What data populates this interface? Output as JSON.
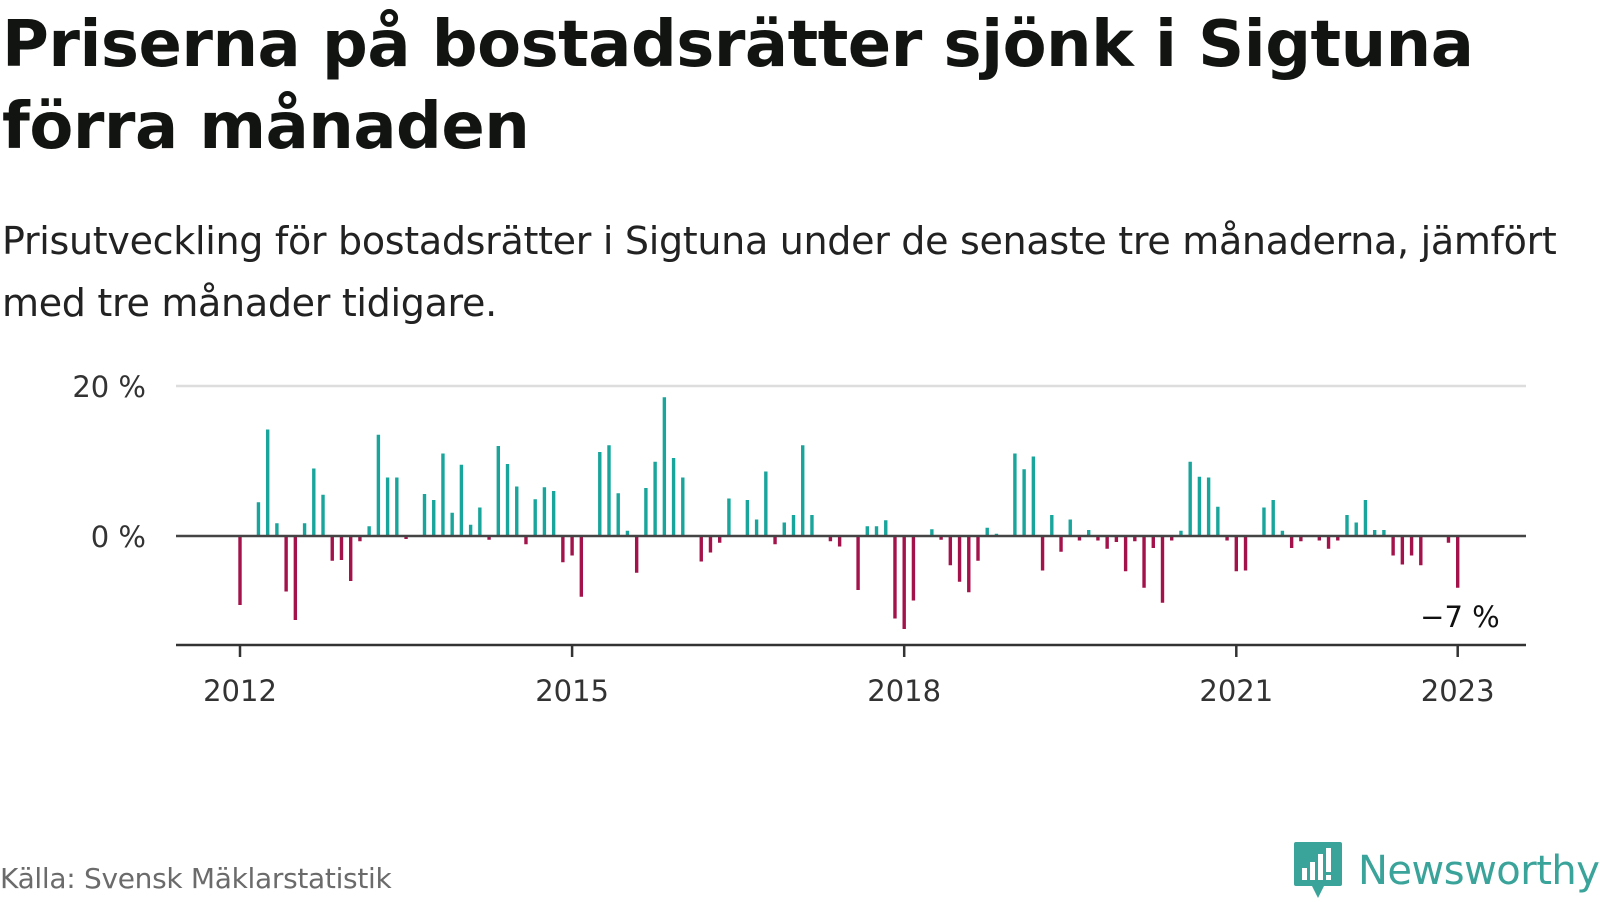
{
  "title": "Priserna på bostadsrätter sjönk i Sigtuna förra månaden",
  "subtitle": "Prisutveckling för bostadsrätter i Sigtuna under de senaste tre månaderna, jämfört med tre månader tidigare.",
  "source": "Källa: Svensk Mäklarstatistik",
  "brand": "Newsworthy",
  "colors": {
    "positive": "#18a59b",
    "negative": "#a3124a",
    "brand": "#3aa39a"
  },
  "chart_data": {
    "type": "bar",
    "unit": "%",
    "start": "2012-01",
    "end": "2023-01",
    "y_ticks": [
      0,
      20
    ],
    "y_tick_labels": [
      "0 %",
      "20 %"
    ],
    "ylim": [
      -14,
      20
    ],
    "x_tick_labels": [
      "2012",
      "2015",
      "2018",
      "2021",
      "2023"
    ],
    "end_label": "−7 %",
    "grid": true,
    "x": [
      "2012-01",
      "2012-02",
      "2012-03",
      "2012-04",
      "2012-05",
      "2012-06",
      "2012-07",
      "2012-08",
      "2012-09",
      "2012-10",
      "2012-11",
      "2012-12",
      "2013-01",
      "2013-02",
      "2013-03",
      "2013-04",
      "2013-05",
      "2013-06",
      "2013-07",
      "2013-08",
      "2013-09",
      "2013-10",
      "2013-11",
      "2013-12",
      "2014-01",
      "2014-02",
      "2014-03",
      "2014-04",
      "2014-05",
      "2014-06",
      "2014-07",
      "2014-08",
      "2014-09",
      "2014-10",
      "2014-11",
      "2014-12",
      "2015-01",
      "2015-02",
      "2015-03",
      "2015-04",
      "2015-05",
      "2015-06",
      "2015-07",
      "2015-08",
      "2015-09",
      "2015-10",
      "2015-11",
      "2015-12",
      "2016-01",
      "2016-02",
      "2016-03",
      "2016-04",
      "2016-05",
      "2016-06",
      "2016-07",
      "2016-08",
      "2016-09",
      "2016-10",
      "2016-11",
      "2016-12",
      "2017-01",
      "2017-02",
      "2017-03",
      "2017-04",
      "2017-05",
      "2017-06",
      "2017-07",
      "2017-08",
      "2017-09",
      "2017-10",
      "2017-11",
      "2017-12",
      "2018-01",
      "2018-02",
      "2018-03",
      "2018-04",
      "2018-05",
      "2018-06",
      "2018-07",
      "2018-08",
      "2018-09",
      "2018-10",
      "2018-11",
      "2018-12",
      "2019-01",
      "2019-02",
      "2019-03",
      "2019-04",
      "2019-05",
      "2019-06",
      "2019-07",
      "2019-08",
      "2019-09",
      "2019-10",
      "2019-11",
      "2019-12",
      "2020-01",
      "2020-02",
      "2020-03",
      "2020-04",
      "2020-05",
      "2020-06",
      "2020-07",
      "2020-08",
      "2020-09",
      "2020-10",
      "2020-11",
      "2020-12",
      "2021-01",
      "2021-02",
      "2021-03",
      "2021-04",
      "2021-05",
      "2021-06",
      "2021-07",
      "2021-08",
      "2021-09",
      "2021-10",
      "2021-11",
      "2021-12",
      "2022-01",
      "2022-02",
      "2022-03",
      "2022-04",
      "2022-05",
      "2022-06",
      "2022-07",
      "2022-08",
      "2022-09",
      "2022-10",
      "2022-11",
      "2022-12",
      "2023-01"
    ],
    "values": [
      -9.2,
      0,
      4.5,
      14.2,
      1.7,
      -7.4,
      -11.2,
      1.7,
      9,
      5.5,
      -3.3,
      -3.2,
      -6,
      -0.7,
      1.3,
      13.5,
      7.8,
      7.8,
      -0.4,
      0,
      5.6,
      4.8,
      11,
      3.1,
      9.5,
      1.5,
      3.8,
      -0.5,
      12,
      9.6,
      6.6,
      -1.1,
      4.9,
      6.5,
      6,
      -3.5,
      -2.6,
      -8.1,
      0,
      11.2,
      12.1,
      5.7,
      0.7,
      -4.9,
      6.4,
      9.9,
      18.5,
      10.4,
      7.8,
      0,
      -3.4,
      -2.2,
      -0.9,
      5,
      0,
      4.8,
      2.2,
      8.6,
      -1.1,
      1.8,
      2.8,
      12.1,
      2.8,
      0,
      -0.7,
      -1.4,
      0,
      -7.2,
      1.3,
      1.3,
      2.1,
      -11,
      -12.4,
      -8.6,
      0,
      0.9,
      -0.5,
      -3.9,
      -6.1,
      -7.5,
      -3.3,
      1.1,
      0.3,
      0,
      11,
      8.9,
      10.6,
      -4.6,
      2.8,
      -2.1,
      2.2,
      -0.6,
      0.8,
      -0.6,
      -1.7,
      -0.8,
      -4.7,
      -0.7,
      -6.9,
      -1.6,
      -8.9,
      -0.6,
      0.7,
      9.9,
      7.9,
      7.8,
      3.9,
      -0.6,
      -4.7,
      -4.6,
      0,
      3.8,
      4.8,
      0.7,
      -1.6,
      -0.7,
      0,
      -0.6,
      -1.7,
      -0.6,
      2.8,
      1.8,
      4.8,
      0.8,
      0.8,
      -2.6,
      -3.8,
      -2.6,
      -3.9,
      0,
      0,
      -0.9,
      -6.9
    ]
  }
}
